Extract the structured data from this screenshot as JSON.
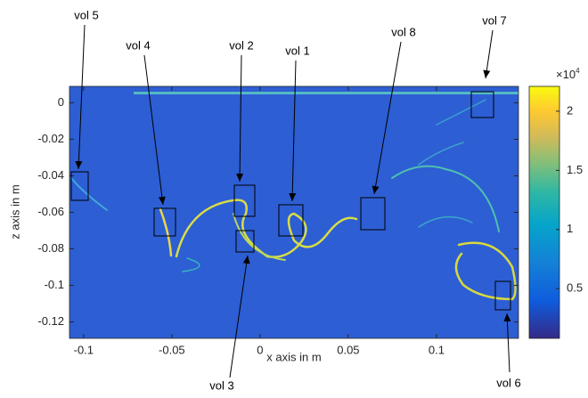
{
  "chart_data": {
    "type": "heatmap",
    "xlabel": "x axis in m",
    "ylabel": "z axis in m",
    "xlim": [
      -0.108,
      0.1465
    ],
    "xticks": [
      -0.1,
      -0.05,
      0,
      0.05,
      0.1
    ],
    "ylim": [
      -0.129,
      0.009
    ],
    "yticks": [
      0,
      -0.02,
      -0.04,
      -0.06,
      -0.08,
      -0.1,
      -0.12
    ],
    "colorbar": {
      "clim": [
        0.08,
        2.21
      ],
      "ticks": [
        0.5,
        1,
        1.5,
        2
      ],
      "multiplier": "×10",
      "exponent": "4"
    },
    "annotations": [
      {
        "text": "vol 5"
      },
      {
        "text": "vol 4"
      },
      {
        "text": "vol 2"
      },
      {
        "text": "vol 1"
      },
      {
        "text": "vol 8"
      },
      {
        "text": "vol 7"
      },
      {
        "text": "vol 3"
      },
      {
        "text": "vol 6"
      }
    ]
  }
}
